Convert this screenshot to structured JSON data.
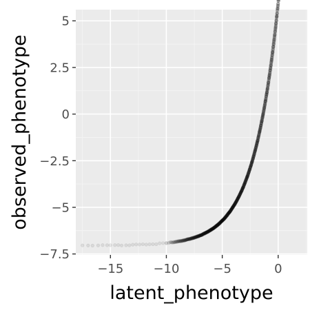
{
  "chart_data": {
    "type": "scatter",
    "title": "",
    "xlabel": "latent_phenotype",
    "ylabel": "observed_phenotype",
    "xlim": [
      -18.1,
      2.6
    ],
    "ylim": [
      -7.55,
      5.6
    ],
    "x_ticks": [
      -15,
      -10,
      -5,
      0
    ],
    "x_tick_labels": [
      "−15",
      "−10",
      "−5",
      "0"
    ],
    "y_ticks": [
      5,
      2.5,
      0,
      -2.5,
      -5,
      -7.5
    ],
    "y_tick_labels": [
      "5",
      "2.5",
      "0",
      "−2.5",
      "−5",
      "−7.5"
    ],
    "grid": true,
    "point_color": "#000000",
    "point_alpha": 0.08,
    "panel_background": "#ebebeb",
    "grid_color": "#ffffff",
    "series": [
      {
        "name": "points",
        "curve": "observed = 13.0 * exp(0.455 * latent) - 7.05",
        "floor_value": -7.05,
        "x_sparse": [
          -17.5,
          -17.0,
          -16.6,
          -16.1,
          -15.7,
          -15.3,
          -15.0,
          -14.6,
          -14.3,
          -14.0,
          -13.6,
          -13.3,
          -13.0,
          -12.7,
          -12.4,
          -12.1,
          -11.8,
          -11.5,
          -11.2,
          -10.9,
          -10.6,
          -10.3,
          -10.0
        ],
        "x_dense_range": [
          -10.0,
          1.4
        ],
        "dense_count": 1600,
        "x_outliers": [
          1.55,
          1.65,
          2.15
        ]
      }
    ]
  }
}
